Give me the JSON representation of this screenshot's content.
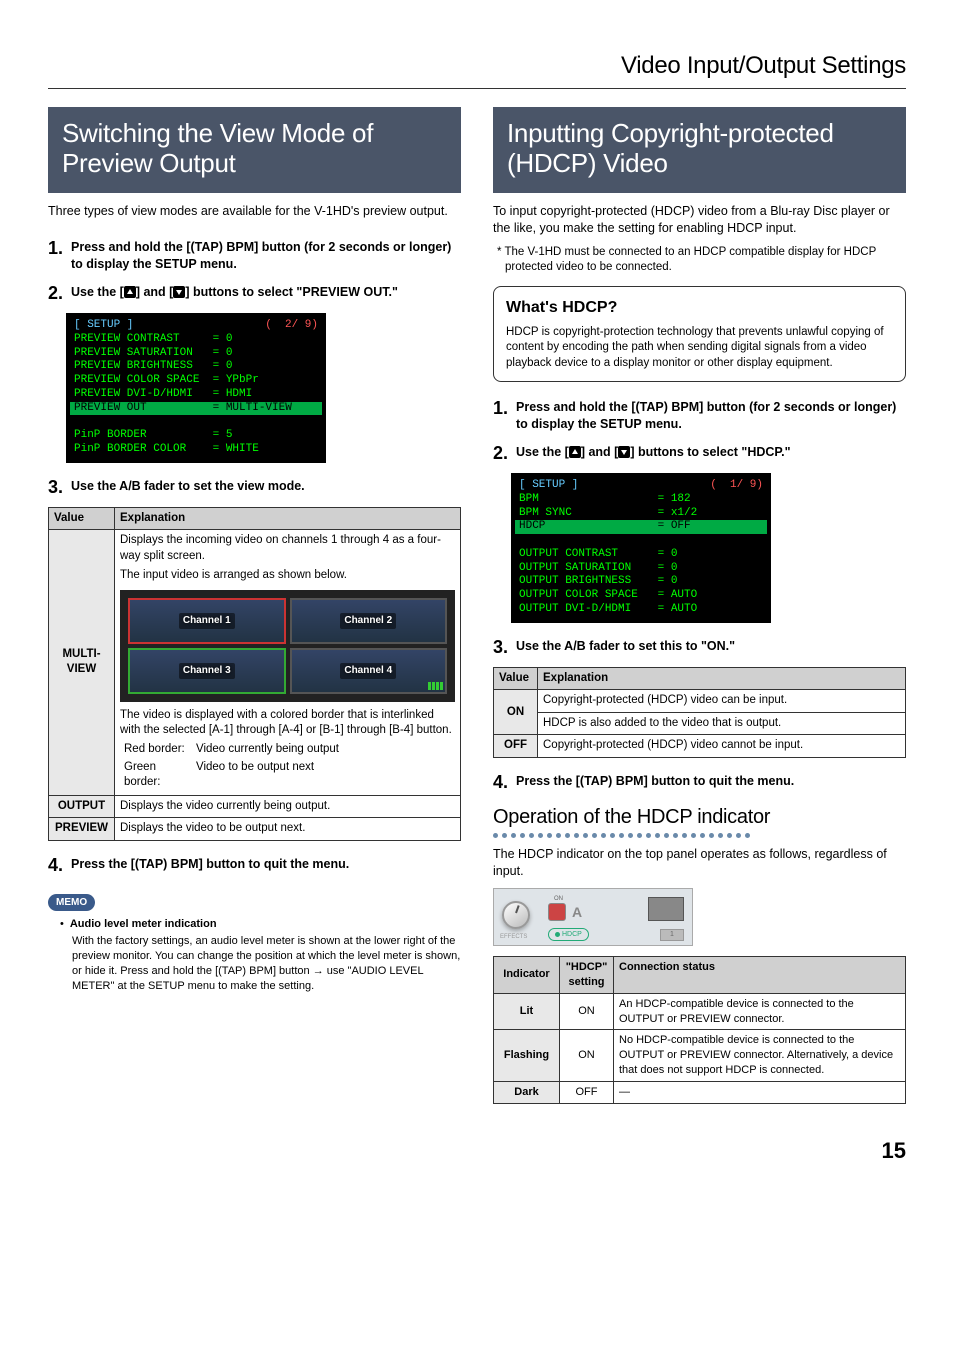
{
  "page": {
    "header": "Video Input/Output Settings",
    "number": "15"
  },
  "left": {
    "title": "Switching the View Mode of Preview Output",
    "intro": "Three types of view modes are available for the V-1HD's preview output.",
    "steps": {
      "s1_num": "1.",
      "s1_body": "Press and hold the [(TAP) BPM] button (for 2 seconds or longer) to display the SETUP menu.",
      "s2_num": "2.",
      "s2_pre": "Use the [",
      "s2_mid": "] and [",
      "s2_post": "] buttons to select \"PREVIEW OUT.\"",
      "s3_num": "3.",
      "s3_body": "Use the A/B fader to set the view mode.",
      "s4_num": "4.",
      "s4_body": "Press the [(TAP) BPM] button to quit the menu."
    },
    "screenshot": {
      "title": "[ SETUP ]",
      "page": "(  2/ 9)",
      "lines": [
        {
          "k": "PREVIEW CONTRAST",
          "v": "= 0"
        },
        {
          "k": "PREVIEW SATURATION",
          "v": "= 0"
        },
        {
          "k": "PREVIEW BRIGHTNESS",
          "v": "= 0"
        },
        {
          "k": "PREVIEW COLOR SPACE",
          "v": "= YPbPr"
        },
        {
          "k": "PREVIEW DVI-D/HDMI",
          "v": "= HDMI"
        }
      ],
      "highlight": {
        "k": "PREVIEW OUT",
        "v": "= MULTI-VIEW"
      },
      "after": [
        {
          "k": "PinP BORDER",
          "v": "= 5"
        },
        {
          "k": "PinP BORDER COLOR",
          "v": "= WHITE"
        }
      ]
    },
    "viewtable": {
      "h1": "Value",
      "h2": "Explanation",
      "multiview": {
        "label": "MULTI-VIEW",
        "p1": "Displays the incoming video on channels 1 through 4 as a four-way split screen.",
        "p2": "The input video is arranged as shown below.",
        "p3": "The video is displayed with a colored border that is interlinked with the selected [A-1] through [A-4] or [B-1] through [B-4] button.",
        "red_label": "Red border:",
        "red_text": "Video currently being output",
        "green_label": "Green border:",
        "green_text": "Video to be output next",
        "ch1": "Channel 1",
        "ch2": "Channel 2",
        "ch3": "Channel 3",
        "ch4": "Channel 4"
      },
      "output": {
        "label": "OUTPUT",
        "text": "Displays the video currently being output."
      },
      "preview": {
        "label": "PREVIEW",
        "text": "Displays the video to be output next."
      }
    },
    "memo": {
      "badge": "MEMO",
      "title": "Audio level meter indication",
      "body": "With the factory settings, an audio level meter is shown at the lower right of the preview monitor. You can change the position at which the level meter is shown, or hide it. Press and hold the [(TAP) BPM] button → use \"AUDIO LEVEL METER\" at the SETUP menu to make the setting."
    }
  },
  "right": {
    "title": "Inputting Copyright-protected (HDCP) Video",
    "intro": "To input copyright-protected (HDCP) video from a Blu-ray Disc player or the like, you make the setting for enabling HDCP input.",
    "note": "* The V-1HD must be connected to an HDCP compatible display for HDCP protected video to be connected.",
    "callout": {
      "title": "What's HDCP?",
      "body": "HDCP is copyright-protection technology that prevents unlawful copying of content by encoding the path when sending digital signals from a video playback device to a display monitor or other display equipment."
    },
    "steps": {
      "s1_num": "1.",
      "s1_body": "Press and hold the [(TAP) BPM] button (for 2 seconds or longer) to display the SETUP menu.",
      "s2_num": "2.",
      "s2_pre": "Use the [",
      "s2_mid": "] and [",
      "s2_post": "] buttons to select \"HDCP.\"",
      "s3_num": "3.",
      "s3_body": "Use the A/B fader to set this to \"ON.\"",
      "s4_num": "4.",
      "s4_body": "Press the [(TAP) BPM] button to quit the menu."
    },
    "screenshot": {
      "title": "[ SETUP ]",
      "page": "(  1/ 9)",
      "lines": [
        {
          "k": "BPM",
          "v": "= 182"
        },
        {
          "k": "BPM SYNC",
          "v": "= x1/2"
        }
      ],
      "highlight": {
        "k": "HDCP",
        "v": "= OFF"
      },
      "after": [
        {
          "k": "OUTPUT CONTRAST",
          "v": "= 0"
        },
        {
          "k": "OUTPUT SATURATION",
          "v": "= 0"
        },
        {
          "k": "OUTPUT BRIGHTNESS",
          "v": "= 0"
        },
        {
          "k": "OUTPUT COLOR SPACE",
          "v": "= AUTO"
        },
        {
          "k": "OUTPUT DVI-D/HDMI",
          "v": "= AUTO"
        }
      ]
    },
    "onoff_table": {
      "h1": "Value",
      "h2": "Explanation",
      "on_label": "ON",
      "on_l1": "Copyright-protected (HDCP) video can be input.",
      "on_l2": "HDCP is also added to the video that is output.",
      "off_label": "OFF",
      "off_text": "Copyright-protected (HDCP) video cannot be input."
    },
    "sub": {
      "heading": "Operation of the HDCP indicator",
      "intro": "The HDCP indicator on the top panel operates as follows, regardless of input.",
      "panel": {
        "on_label": "ON",
        "a_label": "A",
        "hdcp_label": "HDCP",
        "effects_label": "EFFECTS",
        "num": "1"
      }
    },
    "ind_table": {
      "h1": "Indicator",
      "h2": "\"HDCP\" setting",
      "h3": "Connection status",
      "lit_label": "Lit",
      "lit_set": "ON",
      "lit_text": "An HDCP-compatible device is connected to the OUTPUT or PREVIEW connector.",
      "flash_label": "Flashing",
      "flash_set": "ON",
      "flash_text": "No HDCP-compatible device is connected to the OUTPUT or PREVIEW connector. Alternatively, a device that does not support HDCP is connected.",
      "dark_label": "Dark",
      "dark_set": "OFF",
      "dark_text": "—"
    }
  }
}
